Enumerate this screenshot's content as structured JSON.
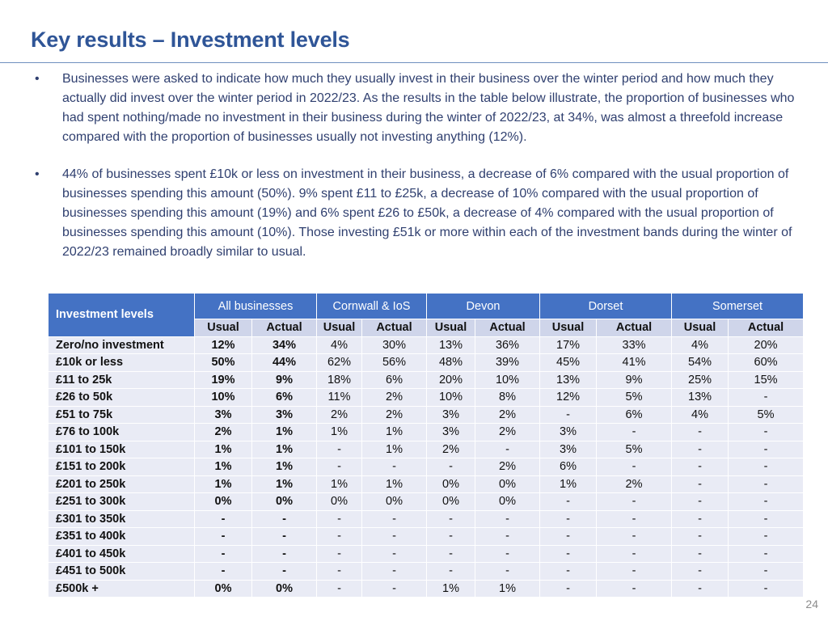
{
  "title": "Key results – Investment levels",
  "bullets": [
    "Businesses were asked to indicate how much they usually invest in their business over the winter period and how much they actually did invest over the winter period in 2022/23.  As the results in the table below illustrate, the proportion of businesses who had spent nothing/made no investment in their business during the winter of 2022/23, at 34%, was almost a threefold increase compared with the proportion of businesses usually not investing anything (12%).",
    "44% of businesses spent £10k or less on investment in their business, a decrease of 6% compared with the usual proportion of businesses spending this amount (50%).  9% spent £11 to £25k, a decrease of 10% compared with the usual proportion of businesses spending this amount (19%) and 6% spent £26 to £50k, a decrease of 4% compared with the usual proportion of businesses spending this amount (10%).   Those investing £51k or more within each of the investment bands during the winter of 2022/23 remained broadly similar to usual."
  ],
  "table": {
    "row_header": "Investment levels",
    "groups": [
      "All businesses",
      "Cornwall & IoS",
      "Devon",
      "Dorset",
      "Somerset"
    ],
    "sub_headers": [
      "Usual",
      "Actual"
    ],
    "rows": [
      {
        "label": "Zero/no investment",
        "cells": [
          "12%",
          "34%",
          "4%",
          "30%",
          "13%",
          "36%",
          "17%",
          "33%",
          "4%",
          "20%"
        ]
      },
      {
        "label": "£10k or less",
        "cells": [
          "50%",
          "44%",
          "62%",
          "56%",
          "48%",
          "39%",
          "45%",
          "41%",
          "54%",
          "60%"
        ]
      },
      {
        "label": "£11 to 25k",
        "cells": [
          "19%",
          "9%",
          "18%",
          "6%",
          "20%",
          "10%",
          "13%",
          "9%",
          "25%",
          "15%"
        ]
      },
      {
        "label": "£26 to 50k",
        "cells": [
          "10%",
          "6%",
          "11%",
          "2%",
          "10%",
          "8%",
          "12%",
          "5%",
          "13%",
          "-"
        ]
      },
      {
        "label": "£51 to 75k",
        "cells": [
          "3%",
          "3%",
          "2%",
          "2%",
          "3%",
          "2%",
          "-",
          "6%",
          "4%",
          "5%"
        ]
      },
      {
        "label": "£76 to 100k",
        "cells": [
          "2%",
          "1%",
          "1%",
          "1%",
          "3%",
          "2%",
          "3%",
          "-",
          "-",
          "-"
        ]
      },
      {
        "label": "£101 to 150k",
        "cells": [
          "1%",
          "1%",
          "-",
          "1%",
          "2%",
          "-",
          "3%",
          "5%",
          "-",
          "-"
        ]
      },
      {
        "label": "£151 to 200k",
        "cells": [
          "1%",
          "1%",
          "-",
          "-",
          "-",
          "2%",
          "6%",
          "-",
          "-",
          "-"
        ]
      },
      {
        "label": "£201 to 250k",
        "cells": [
          "1%",
          "1%",
          "1%",
          "1%",
          "0%",
          "0%",
          "1%",
          "2%",
          "-",
          "-"
        ]
      },
      {
        "label": "£251 to 300k",
        "cells": [
          "0%",
          "0%",
          "0%",
          "0%",
          "0%",
          "0%",
          "-",
          "-",
          "-",
          "-"
        ]
      },
      {
        "label": "£301 to 350k",
        "cells": [
          "-",
          "-",
          "-",
          "-",
          "-",
          "-",
          "-",
          "-",
          "-",
          "-"
        ]
      },
      {
        "label": "£351 to 400k",
        "cells": [
          "-",
          "-",
          "-",
          "-",
          "-",
          "-",
          "-",
          "-",
          "-",
          "-"
        ]
      },
      {
        "label": "£401 to 450k",
        "cells": [
          "-",
          "-",
          "-",
          "-",
          "-",
          "-",
          "-",
          "-",
          "-",
          "-"
        ]
      },
      {
        "label": "£451 to 500k",
        "cells": [
          "-",
          "-",
          "-",
          "-",
          "-",
          "-",
          "-",
          "-",
          "-",
          "-"
        ]
      },
      {
        "label": "£500k +",
        "cells": [
          "0%",
          "0%",
          "-",
          "-",
          "1%",
          "1%",
          "-",
          "-",
          "-",
          "-"
        ]
      }
    ]
  },
  "page_number": "24",
  "colors": {
    "title": "#2f5597",
    "header_bg": "#4472c4",
    "subheader_bg": "#cfd5ea",
    "row_bg": "#e9ebf5"
  }
}
